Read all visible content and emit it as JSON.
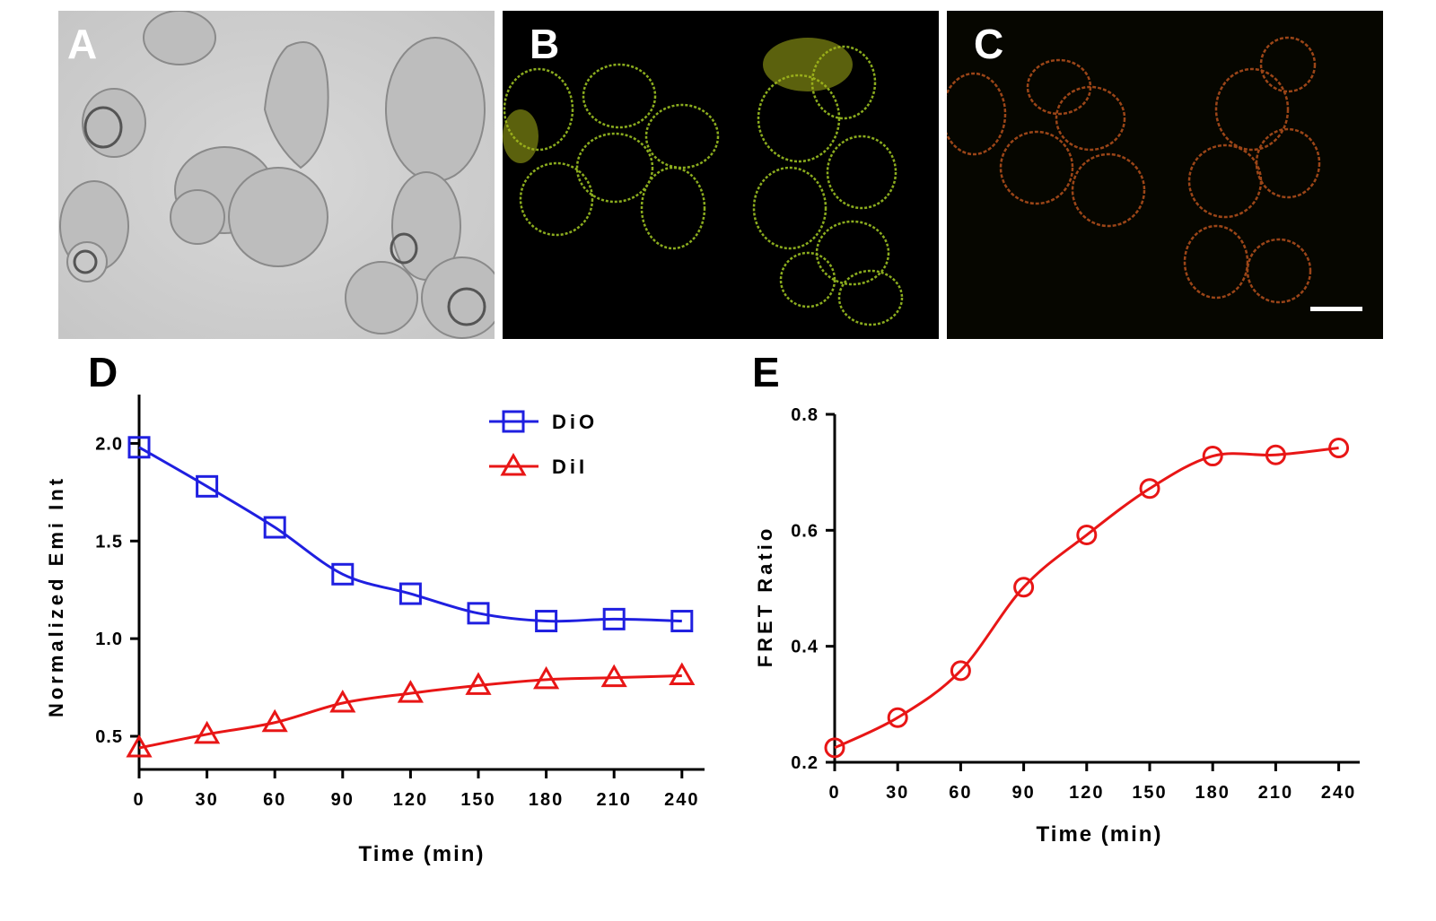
{
  "panels": {
    "a": {
      "letter": "A"
    },
    "b": {
      "letter": "B"
    },
    "c": {
      "letter": "C"
    }
  },
  "chart_data": [
    {
      "panel_letter": "D",
      "type": "scatter",
      "xlabel": "Time (min)",
      "ylabel": "Normalized Emi Int",
      "x": [
        0,
        30,
        60,
        90,
        120,
        150,
        180,
        210,
        240
      ],
      "xlim": [
        0,
        250
      ],
      "ylim": [
        0.33,
        2.25
      ],
      "xticks": [
        0,
        30,
        60,
        90,
        120,
        150,
        180,
        210,
        240
      ],
      "yticks": [
        0.5,
        1.0,
        1.5,
        2.0
      ],
      "ytick_labels": [
        "0.5",
        "1.0",
        "1.5",
        "2.0"
      ],
      "legend_position": "top-right",
      "series": [
        {
          "name": "DiO",
          "marker": "square",
          "color": "#1f1fe0",
          "values": [
            1.98,
            1.78,
            1.57,
            1.33,
            1.23,
            1.13,
            1.09,
            1.1,
            1.09
          ]
        },
        {
          "name": "DiI",
          "marker": "triangle",
          "color": "#e81616",
          "values": [
            0.44,
            0.51,
            0.57,
            0.67,
            0.72,
            0.76,
            0.79,
            0.8,
            0.81
          ]
        }
      ]
    },
    {
      "panel_letter": "E",
      "type": "scatter",
      "xlabel": "Time (min)",
      "ylabel": "FRET Ratio",
      "x": [
        0,
        30,
        60,
        90,
        120,
        150,
        180,
        210,
        240
      ],
      "xlim": [
        0,
        250
      ],
      "ylim": [
        0.2,
        0.8
      ],
      "xticks": [
        0,
        30,
        60,
        90,
        120,
        150,
        180,
        210,
        240
      ],
      "yticks": [
        0.2,
        0.4,
        0.6,
        0.8
      ],
      "ytick_labels": [
        "0.2",
        "0.4",
        "0.6",
        "0.8"
      ],
      "series": [
        {
          "marker": "circle",
          "color": "#e81616",
          "values": [
            0.225,
            0.277,
            0.358,
            0.502,
            0.592,
            0.672,
            0.728,
            0.73,
            0.742
          ]
        }
      ]
    }
  ]
}
